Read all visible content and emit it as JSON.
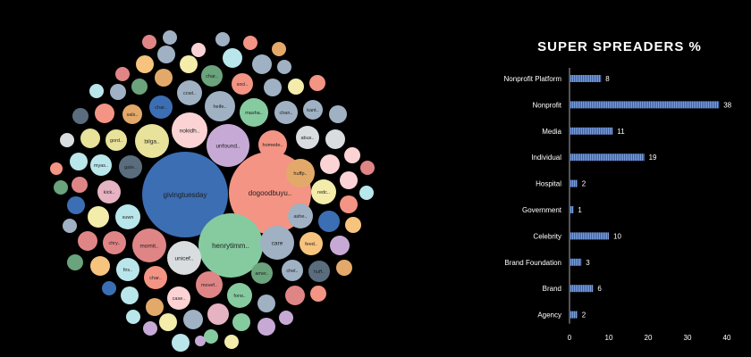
{
  "bubble_chart": {
    "labels": [
      "givingtuesday",
      "dogoodbuyu..",
      "henrytimm..",
      "unfound..",
      "nokidh..",
      "momit..",
      "unicef..",
      "bilga..",
      "homede..",
      "care",
      "heife..",
      "masha..",
      "chan..",
      "abus..",
      "huffp..",
      "redc..",
      "ashe..",
      "feed..",
      "chel..",
      "huff..",
      "amer..",
      "forw..",
      "movef..",
      "case..",
      "char..",
      "firs..",
      "chry..",
      "suwn",
      "kick..",
      "gate..",
      "myas..",
      "gord..",
      "sals..",
      "char..",
      "ccwt..",
      "char..",
      "soci..",
      "kant.."
    ]
  },
  "chart_data": {
    "type": "bar",
    "orientation": "horizontal",
    "title": "SUPER SPREADERS %",
    "categories": [
      "Nonprofit Platform",
      "Nonprofit",
      "Media",
      "Individual",
      "Hospital",
      "Government",
      "Celebrity",
      "Brand Foundation",
      "Brand",
      "Agency"
    ],
    "values": [
      8,
      38,
      11,
      19,
      2,
      1,
      10,
      3,
      6,
      2
    ],
    "xlim": [
      0,
      40
    ],
    "xticks": [
      "0",
      "10",
      "20",
      "30",
      "40"
    ],
    "bar_color": "#7b9fdc",
    "grid": false
  }
}
